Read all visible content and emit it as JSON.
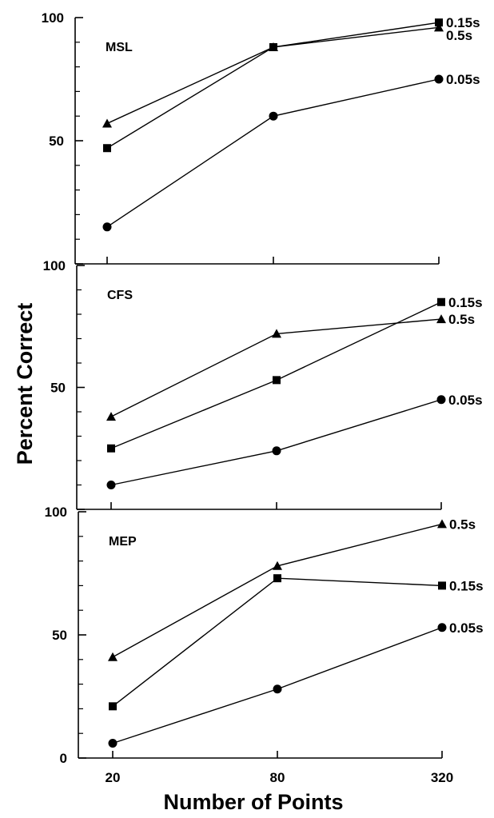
{
  "chart_data": {
    "type": "line",
    "xlabel": "Number of Points",
    "ylabel": "Percent Correct",
    "x": [
      "20",
      "80",
      "320"
    ],
    "ylim": [
      0,
      100
    ],
    "y_ticks": [
      "0",
      "50",
      "100"
    ],
    "colors": {
      "ink": "#000000",
      "background": "#ffffff"
    },
    "panels": [
      {
        "title": "MSL",
        "series": [
          {
            "name": "0.15s",
            "marker": "square",
            "values": [
              47,
              88,
              98
            ]
          },
          {
            "name": "0.5s",
            "marker": "triangle",
            "values": [
              57,
              88,
              96
            ]
          },
          {
            "name": "0.05s",
            "marker": "circle",
            "values": [
              15,
              60,
              75
            ]
          }
        ]
      },
      {
        "title": "CFS",
        "series": [
          {
            "name": "0.15s",
            "marker": "square",
            "values": [
              25,
              53,
              85
            ]
          },
          {
            "name": "0.5s",
            "marker": "triangle",
            "values": [
              38,
              72,
              78
            ]
          },
          {
            "name": "0.05s",
            "marker": "circle",
            "values": [
              10,
              24,
              45
            ]
          }
        ]
      },
      {
        "title": "MEP",
        "series": [
          {
            "name": "0.5s",
            "marker": "triangle",
            "values": [
              41,
              78,
              95
            ]
          },
          {
            "name": "0.15s",
            "marker": "square",
            "values": [
              21,
              73,
              70
            ]
          },
          {
            "name": "0.05s",
            "marker": "circle",
            "values": [
              6,
              28,
              53
            ]
          }
        ]
      }
    ]
  }
}
